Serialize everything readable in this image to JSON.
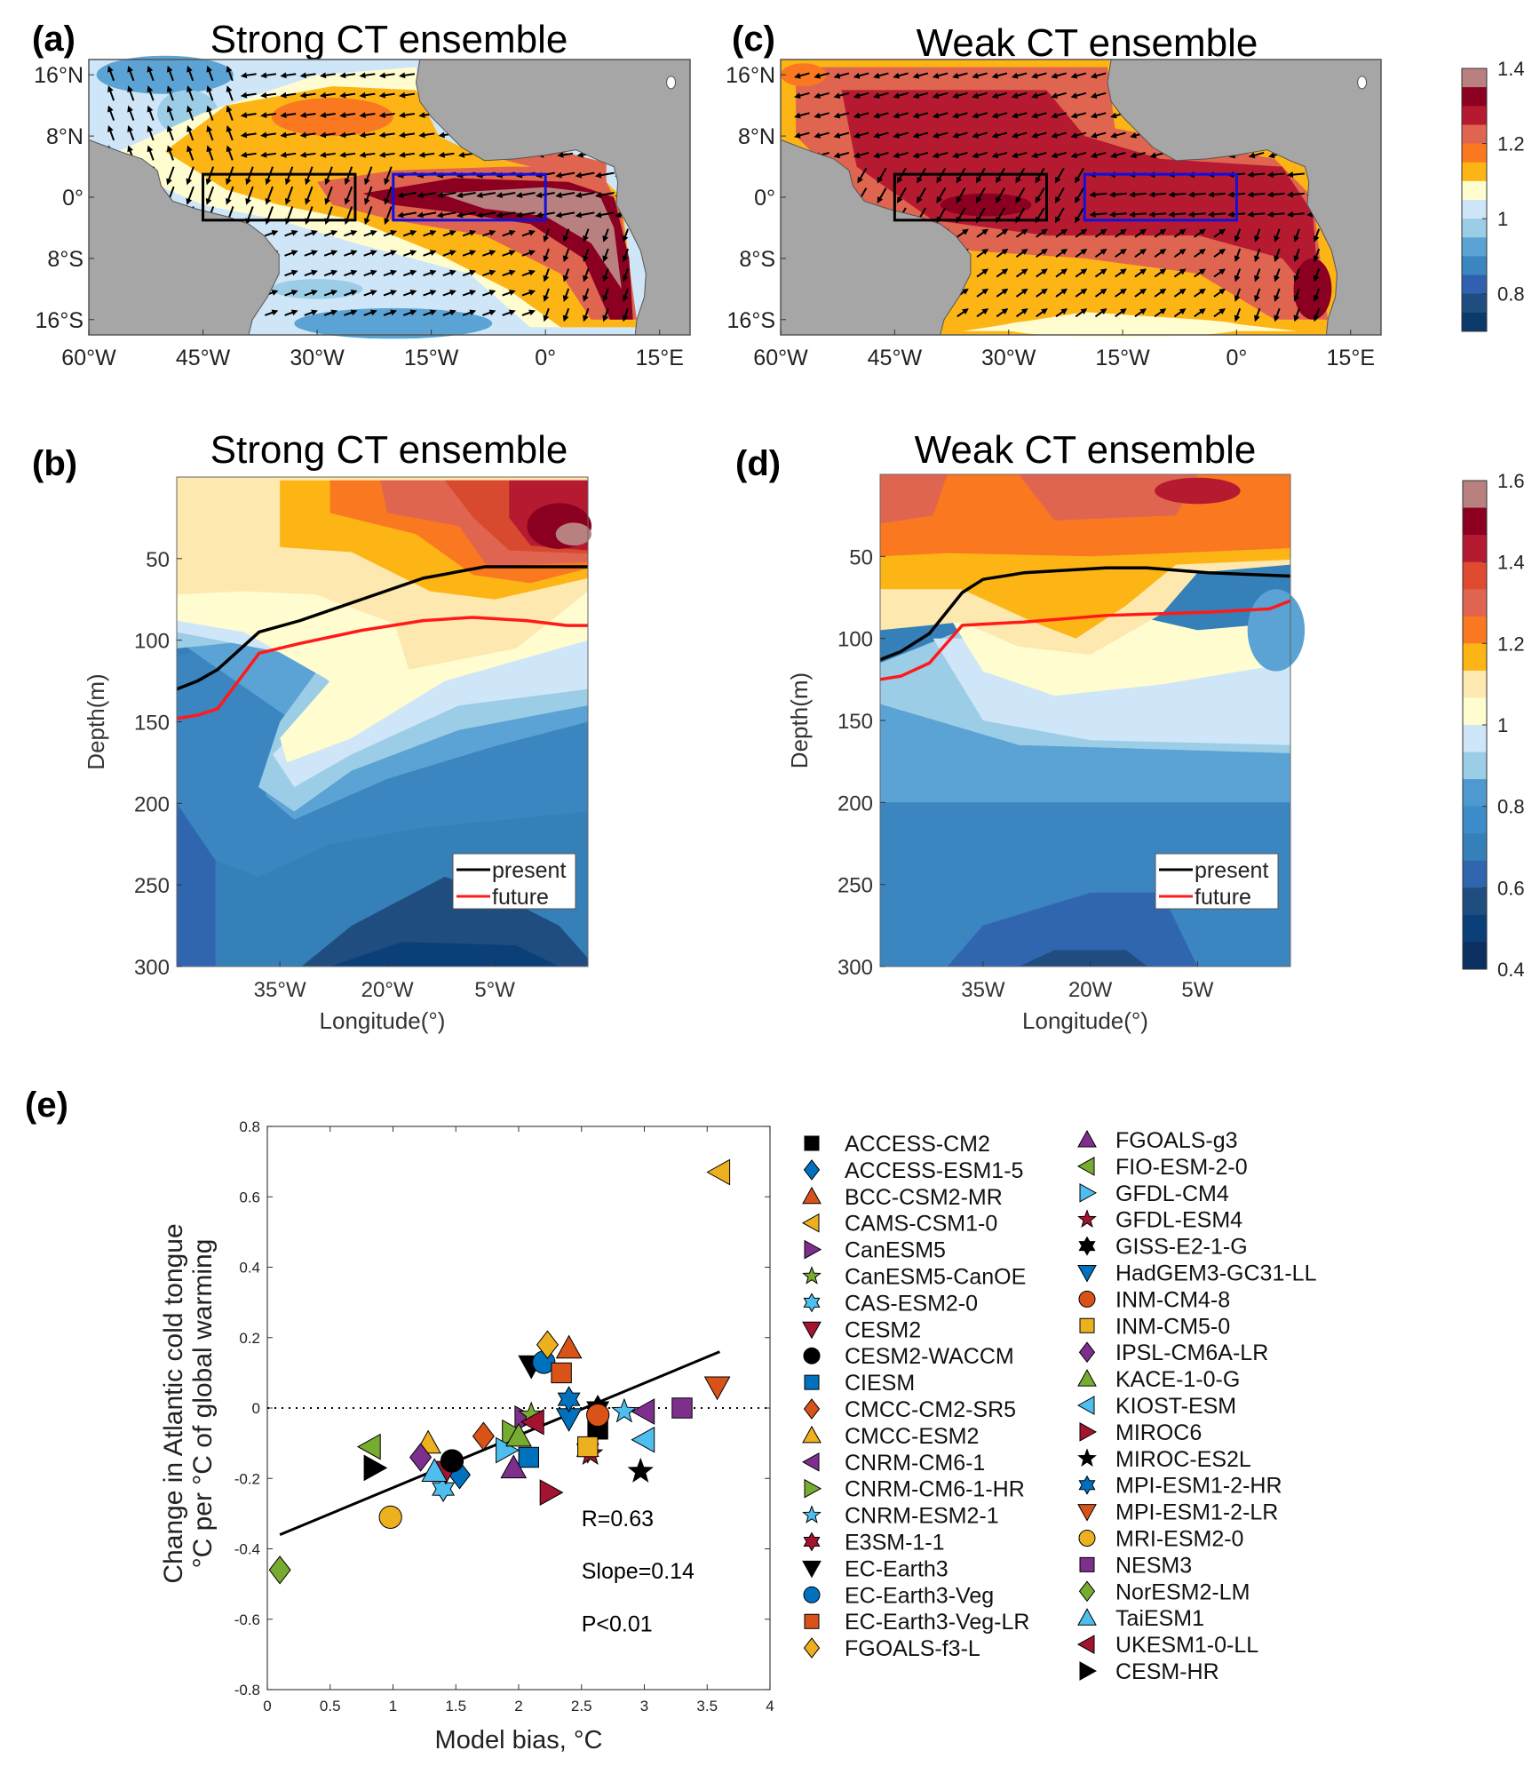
{
  "chart_data": [
    {
      "id": "a",
      "panel_label": "(a)",
      "title": "Strong CT ensemble",
      "type": "heatmap",
      "subtype": "map-with-vectors",
      "xlim": [
        -60,
        19
      ],
      "ylim": [
        -18,
        18
      ],
      "x_ticks": [
        -60,
        -45,
        -30,
        -15,
        0,
        15
      ],
      "x_tick_labels": [
        "60°W",
        "45°W",
        "30°W",
        "15°W",
        "0°",
        "15°E"
      ],
      "y_ticks": [
        16,
        8,
        0,
        -8,
        -16
      ],
      "y_tick_labels": [
        "16°N",
        "8°N",
        "0°",
        "8°S",
        "16°S"
      ],
      "boxes": [
        {
          "lon": [
            -45,
            -25
          ],
          "lat": [
            -3,
            3
          ],
          "color": "#000000"
        },
        {
          "lon": [
            -20,
            0
          ],
          "lat": [
            -3,
            3
          ],
          "color": "#1010e0"
        }
      ],
      "colorbar": {
        "range": [
          0.7,
          1.4
        ],
        "tick_labels": [
          "1.4",
          "1.2",
          "1",
          "0.8"
        ],
        "ticks": [
          1.4,
          1.2,
          1.0,
          0.8
        ]
      }
    },
    {
      "id": "c",
      "panel_label": "(c)",
      "title": "Weak CT ensemble",
      "type": "heatmap",
      "subtype": "map-with-vectors",
      "xlim": [
        -60,
        19
      ],
      "ylim": [
        -18,
        18
      ],
      "x_ticks": [
        -60,
        -45,
        -30,
        -15,
        0,
        15
      ],
      "x_tick_labels": [
        "60°W",
        "45°W",
        "30°W",
        "15°W",
        "0°",
        "15°E"
      ],
      "y_ticks": [
        16,
        8,
        0,
        -8,
        -16
      ],
      "y_tick_labels": [
        "16°N",
        "8°N",
        "0°",
        "8°S",
        "16°S"
      ],
      "boxes": [
        {
          "lon": [
            -45,
            -25
          ],
          "lat": [
            -3,
            3
          ],
          "color": "#000000"
        },
        {
          "lon": [
            -20,
            0
          ],
          "lat": [
            -3,
            3
          ],
          "color": "#1010e0"
        }
      ]
    },
    {
      "id": "b",
      "panel_label": "(b)",
      "title": "Strong CT ensemble",
      "type": "heatmap",
      "subtype": "depth-section",
      "xlabel": "Longitude(°)",
      "ylabel": "Depth(m)",
      "xlim": [
        -49.4,
        8
      ],
      "ylim": [
        0,
        300
      ],
      "x_ticks": [
        -35,
        -20,
        -5
      ],
      "x_tick_labels": [
        "35°W",
        "20°W",
        "5°W"
      ],
      "y_ticks": [
        50,
        100,
        150,
        200,
        250,
        300
      ],
      "y_tick_labels": [
        "50",
        "100",
        "150",
        "200",
        "250",
        "300"
      ],
      "legend": {
        "placement": "bottom-right",
        "entries": [
          {
            "name": "present",
            "color": "#000000"
          },
          {
            "name": "future",
            "color": "#ff1a1a"
          }
        ]
      },
      "series": [
        {
          "name": "present",
          "lon": [
            -49.4,
            -46.5,
            -43.7,
            -37.9,
            -32.2,
            -23.6,
            -15,
            -6.4,
            -0.6,
            8
          ],
          "depth": [
            130,
            125,
            118,
            95,
            88,
            75,
            62,
            55,
            55,
            55
          ]
        },
        {
          "name": "future",
          "lon": [
            -49.4,
            -46.5,
            -43.7,
            -37.9,
            -32.2,
            -23.6,
            -15,
            -8.1,
            -0.6,
            5.1,
            8
          ],
          "depth": [
            148,
            146,
            142,
            108,
            102,
            94,
            88,
            86,
            88,
            91,
            91
          ]
        }
      ],
      "colorbar": {
        "range": [
          0.4,
          1.6
        ],
        "tick_labels": [
          "1.6",
          "1.4",
          "1.2",
          "1",
          "0.8",
          "0.6",
          "0.4"
        ],
        "ticks": [
          1.6,
          1.4,
          1.2,
          1.0,
          0.8,
          0.6,
          0.4
        ]
      }
    },
    {
      "id": "d",
      "panel_label": "(d)",
      "title": "Weak CT ensemble",
      "type": "heatmap",
      "subtype": "depth-section",
      "xlabel": "Longitude(°)",
      "ylabel": "Depth(m)",
      "xlim": [
        -49.4,
        8
      ],
      "ylim": [
        0,
        300
      ],
      "x_ticks": [
        -35,
        -20,
        -5
      ],
      "x_tick_labels": [
        "35W",
        "20W",
        "5W"
      ],
      "y_ticks": [
        50,
        100,
        150,
        200,
        250,
        300
      ],
      "y_tick_labels": [
        "50",
        "100",
        "150",
        "200",
        "250",
        "300"
      ],
      "legend": {
        "placement": "bottom-right",
        "entries": [
          {
            "name": "present",
            "color": "#000000"
          },
          {
            "name": "future",
            "color": "#ff1a1a"
          }
        ]
      },
      "series": [
        {
          "name": "present",
          "lon": [
            -49.4,
            -46.5,
            -42.5,
            -37.9,
            -35,
            -29.3,
            -17.8,
            -12.1,
            -3.5,
            8
          ],
          "depth": [
            113,
            108,
            97,
            72,
            64,
            60,
            57,
            57,
            60,
            62
          ]
        },
        {
          "name": "future",
          "lon": [
            -49.4,
            -46.5,
            -42.5,
            -37.9,
            -29.3,
            -17.8,
            -3.5,
            5.1,
            8
          ],
          "depth": [
            125,
            123,
            115,
            92,
            90,
            86,
            84,
            82,
            77
          ]
        }
      ]
    },
    {
      "id": "e",
      "panel_label": "(e)",
      "type": "scatter",
      "xlabel": "Model bias, °C",
      "ylabel": [
        "Change in Atlantic cold tongue",
        "°C per °C of global warming"
      ],
      "xlim": [
        0,
        4
      ],
      "ylim": [
        -0.8,
        0.8
      ],
      "x_ticks": [
        0,
        0.5,
        1,
        1.5,
        2,
        2.5,
        3,
        3.5,
        4
      ],
      "x_tick_labels": [
        "0",
        "0.5",
        "1",
        "1.5",
        "2",
        "2.5",
        "3",
        "3.5",
        "4"
      ],
      "y_ticks": [
        -0.8,
        -0.6,
        -0.4,
        -0.2,
        0,
        0.2,
        0.4,
        0.6,
        0.8
      ],
      "y_tick_labels": [
        "-0.8",
        "-0.6",
        "-0.4",
        "-0.2",
        "0",
        "0.2",
        "0.4",
        "0.6",
        "0.8"
      ],
      "zero_line": "dotted",
      "fit_line": {
        "x": [
          0.1,
          3.6
        ],
        "y": [
          -0.36,
          0.16
        ]
      },
      "annotations": [
        "R=0.63",
        "Slope=0.14",
        "P<0.01"
      ],
      "legend_placement": "right",
      "points": [
        {
          "name": "ACCESS-CM2",
          "marker": "square",
          "color": "#000000",
          "x": 2.63,
          "y": -0.06
        },
        {
          "name": "ACCESS-ESM1-5",
          "marker": "diamond",
          "color": "#0072BD",
          "x": 1.53,
          "y": -0.19
        },
        {
          "name": "BCC-CSM2-MR",
          "marker": "triangle-up",
          "color": "#D95319",
          "x": 2.4,
          "y": 0.17
        },
        {
          "name": "CAMS-CSM1-0",
          "marker": "triangle-left",
          "color": "#EDB120",
          "x": 3.6,
          "y": 0.67
        },
        {
          "name": "CanESM5",
          "marker": "triangle-right",
          "color": "#7E2F8E",
          "x": 2.05,
          "y": -0.03
        },
        {
          "name": "CanESM5-CanOE",
          "marker": "star",
          "color": "#77AC30",
          "x": 2.1,
          "y": -0.02
        },
        {
          "name": "CAS-ESM2-0",
          "marker": "hexagram",
          "color": "#4DBEEE",
          "x": 1.4,
          "y": -0.23
        },
        {
          "name": "CESM2",
          "marker": "triangle-down",
          "color": "#A2142F",
          "x": 1.42,
          "y": -0.18
        },
        {
          "name": "CESM2-WACCM",
          "marker": "circle",
          "color": "#000000",
          "x": 1.47,
          "y": -0.15
        },
        {
          "name": "CIESM",
          "marker": "square",
          "color": "#0072BD",
          "x": 2.08,
          "y": -0.14
        },
        {
          "name": "CMCC-CM2-SR5",
          "marker": "diamond",
          "color": "#D95319",
          "x": 1.72,
          "y": -0.08
        },
        {
          "name": "CMCC-ESM2",
          "marker": "triangle-up",
          "color": "#EDB120",
          "x": 1.28,
          "y": -0.1
        },
        {
          "name": "CNRM-CM6-1",
          "marker": "triangle-left",
          "color": "#7E2F8E",
          "x": 3.0,
          "y": -0.01
        },
        {
          "name": "CNRM-CM6-1-HR",
          "marker": "triangle-right",
          "color": "#77AC30",
          "x": 1.95,
          "y": -0.07
        },
        {
          "name": "CNRM-ESM2-1",
          "marker": "star",
          "color": "#4DBEEE",
          "x": 2.84,
          "y": -0.01
        },
        {
          "name": "E3SM-1-1",
          "marker": "hexagram",
          "color": "#A2142F",
          "x": 2.55,
          "y": -0.12
        },
        {
          "name": "EC-Earth3",
          "marker": "triangle-down",
          "color": "#000000",
          "x": 2.1,
          "y": 0.12
        },
        {
          "name": "EC-Earth3-Veg",
          "marker": "circle",
          "color": "#0072BD",
          "x": 2.2,
          "y": 0.13
        },
        {
          "name": "EC-Earth3-Veg-LR",
          "marker": "square",
          "color": "#D95319",
          "x": 2.34,
          "y": 0.1
        },
        {
          "name": "FGOALS-f3-L",
          "marker": "diamond",
          "color": "#EDB120",
          "x": 2.23,
          "y": 0.18
        },
        {
          "name": "FGOALS-g3",
          "marker": "triangle-up",
          "color": "#7E2F8E",
          "x": 1.96,
          "y": -0.17
        },
        {
          "name": "FIO-ESM-2-0",
          "marker": "triangle-left",
          "color": "#77AC30",
          "x": 0.82,
          "y": -0.11
        },
        {
          "name": "GFDL-CM4",
          "marker": "triangle-right",
          "color": "#4DBEEE",
          "x": 1.9,
          "y": -0.12
        },
        {
          "name": "GFDL-ESM4",
          "marker": "star",
          "color": "#A2142F",
          "x": 2.57,
          "y": -0.13
        },
        {
          "name": "GISS-E2-1-G",
          "marker": "hexagram",
          "color": "#000000",
          "x": 2.63,
          "y": 0.0
        },
        {
          "name": "HadGEM3-GC31-LL",
          "marker": "triangle-down",
          "color": "#0072BD",
          "x": 2.4,
          "y": -0.03
        },
        {
          "name": "INM-CM4-8",
          "marker": "circle",
          "color": "#D95319",
          "x": 2.63,
          "y": -0.02
        },
        {
          "name": "INM-CM5-0",
          "marker": "square",
          "color": "#EDB120",
          "x": 2.55,
          "y": -0.11
        },
        {
          "name": "IPSL-CM6A-LR",
          "marker": "diamond",
          "color": "#7E2F8E",
          "x": 1.22,
          "y": -0.14
        },
        {
          "name": "KACE-1-0-G",
          "marker": "triangle-up",
          "color": "#77AC30",
          "x": 2.0,
          "y": -0.08
        },
        {
          "name": "KIOST-ESM",
          "marker": "triangle-left",
          "color": "#4DBEEE",
          "x": 3.0,
          "y": -0.09
        },
        {
          "name": "MIROC6",
          "marker": "triangle-right",
          "color": "#A2142F",
          "x": 2.25,
          "y": -0.24
        },
        {
          "name": "MIROC-ES2L",
          "marker": "star",
          "color": "#000000",
          "x": 2.97,
          "y": -0.18
        },
        {
          "name": "MPI-ESM1-2-HR",
          "marker": "hexagram",
          "color": "#0072BD",
          "x": 2.4,
          "y": 0.025
        },
        {
          "name": "MPI-ESM1-2-LR",
          "marker": "triangle-down",
          "color": "#D95319",
          "x": 3.58,
          "y": 0.06
        },
        {
          "name": "MRI-ESM2-0",
          "marker": "circle",
          "color": "#EDB120",
          "x": 0.98,
          "y": -0.31
        },
        {
          "name": "NESM3",
          "marker": "square",
          "color": "#7E2F8E",
          "x": 3.3,
          "y": 0.0
        },
        {
          "name": "NorESM2-LM",
          "marker": "diamond",
          "color": "#77AC30",
          "x": 0.1,
          "y": -0.46
        },
        {
          "name": "TaiESM1",
          "marker": "triangle-up",
          "color": "#4DBEEE",
          "x": 1.33,
          "y": -0.18
        },
        {
          "name": "UKESM1-0-LL",
          "marker": "triangle-left",
          "color": "#A2142F",
          "x": 2.12,
          "y": -0.04
        },
        {
          "name": "CESM-HR",
          "marker": "triangle-right",
          "color": "#000000",
          "x": 0.85,
          "y": -0.17
        }
      ]
    }
  ]
}
